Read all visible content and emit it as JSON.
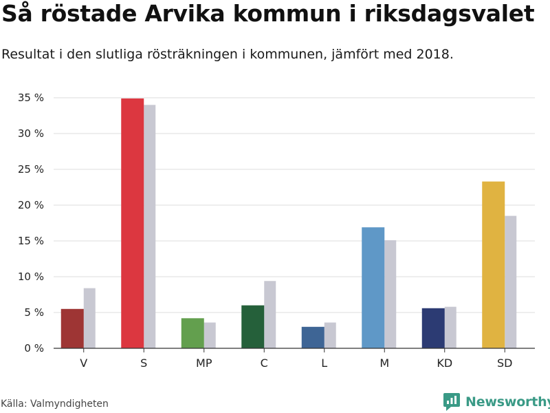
{
  "title": "Så röstade Arvika kommun i riksdagsvalet",
  "subtitle": "Resultat i den slutliga rösträkningen i kommunen, jämfört med 2018.",
  "source": "Källa: Valmyndigheten",
  "brand": "Newsworthy",
  "chart_data": {
    "type": "bar",
    "categories": [
      "V",
      "S",
      "MP",
      "C",
      "L",
      "M",
      "KD",
      "SD"
    ],
    "series": [
      {
        "values": [
          5.5,
          34.9,
          4.2,
          6.0,
          3.0,
          16.9,
          5.6,
          23.3
        ]
      },
      {
        "values": [
          8.4,
          34.0,
          3.6,
          9.4,
          3.6,
          15.1,
          5.8,
          18.5
        ]
      }
    ],
    "colors_current": [
      "#9e3534",
      "#dc3740",
      "#639f4e",
      "#25603a",
      "#3e6595",
      "#5f98c7",
      "#2c3b73",
      "#e0b341"
    ],
    "color_previous": "#c8c8d2",
    "ylim": [
      0,
      35
    ],
    "yticks": [
      0,
      5,
      10,
      15,
      20,
      25,
      30,
      35
    ],
    "ytick_labels": [
      "0 %",
      "5 %",
      "10 %",
      "15 %",
      "20 %",
      "25 %",
      "30 %",
      "35 %"
    ],
    "grid": true
  }
}
